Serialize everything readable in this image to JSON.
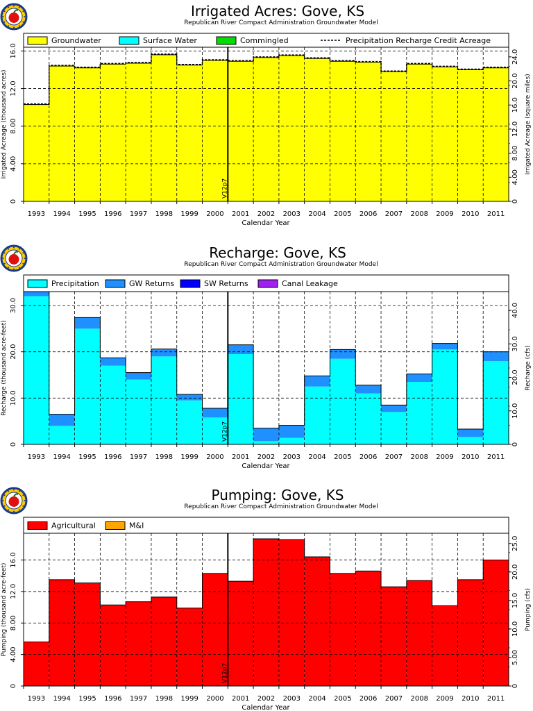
{
  "chart_data": [
    {
      "type": "bar",
      "title": "Irrigated Acres: Gove, KS",
      "subtitle": "Republican River Compact Administration Groundwater Model",
      "xlabel": "Calendar Year",
      "ylabel": "Irrigated Acreage (thousand acres)",
      "ylabel_right": "Irrigated Acreage (square miles)",
      "categories": [
        "1993",
        "1994",
        "1995",
        "1996",
        "1997",
        "1998",
        "1999",
        "2000",
        "2001",
        "2002",
        "2003",
        "2004",
        "2005",
        "2006",
        "2007",
        "2008",
        "2009",
        "2010",
        "2011"
      ],
      "ylim": [
        0,
        16.4
      ],
      "yticks": [
        0,
        4.0,
        8.0,
        12.0,
        16.0
      ],
      "yticks_labels": [
        "0",
        "4.00",
        "8.00",
        "12.0",
        "16.0"
      ],
      "ylim_right": [
        0,
        25.6
      ],
      "yticks_right": [
        0,
        4.0,
        8.0,
        12.0,
        16.0,
        20.0,
        24.0
      ],
      "yticks_right_labels": [
        "0",
        "4.00",
        "8.00",
        "12.0",
        "16.0",
        "20.0",
        "24.0"
      ],
      "colors": [
        "#ffff00",
        "#00ffff",
        "#00dd00"
      ],
      "series": [
        {
          "name": "Groundwater",
          "values": [
            10.3,
            14.4,
            14.2,
            14.6,
            14.7,
            15.6,
            14.5,
            15.0,
            14.9,
            15.3,
            15.5,
            15.2,
            14.9,
            14.8,
            13.8,
            14.6,
            14.3,
            14.0,
            14.2
          ]
        },
        {
          "name": "Surface Water",
          "values": [
            0,
            0,
            0,
            0,
            0,
            0,
            0,
            0,
            0,
            0,
            0,
            0,
            0,
            0,
            0,
            0,
            0,
            0,
            0
          ]
        },
        {
          "name": "Commingled",
          "values": [
            0,
            0,
            0,
            0,
            0,
            0,
            0,
            0,
            0,
            0,
            0,
            0,
            0,
            0,
            0,
            0,
            0,
            0,
            0
          ]
        }
      ],
      "line_series": {
        "name": "Precipitation Recharge Credit Acreage",
        "values": [
          10.3,
          14.4,
          14.2,
          14.6,
          14.7,
          15.6,
          14.5,
          15.0,
          14.9,
          15.3,
          15.5,
          15.2,
          14.9,
          14.8,
          13.8,
          14.6,
          14.3,
          14.0,
          14.2
        ]
      },
      "marker": {
        "label": "V12p7"
      },
      "grid": true,
      "legend": "top"
    },
    {
      "type": "bar",
      "title": "Recharge: Gove, KS",
      "subtitle": "Republican River Compact Administration Groundwater Model",
      "xlabel": "Calendar Year",
      "ylabel": "Recharge (thousand acre-feet)",
      "ylabel_right": "Recharge (cfs)",
      "categories": [
        "1993",
        "1994",
        "1995",
        "1996",
        "1997",
        "1998",
        "1999",
        "2000",
        "2001",
        "2002",
        "2003",
        "2004",
        "2005",
        "2006",
        "2007",
        "2008",
        "2009",
        "2010",
        "2011"
      ],
      "ylim": [
        0,
        33
      ],
      "yticks": [
        0,
        10.0,
        20.0,
        30.0
      ],
      "yticks_labels": [
        "0",
        "10.0",
        "20.0",
        "30.0"
      ],
      "ylim_right": [
        0,
        45.6
      ],
      "yticks_right": [
        0,
        10.0,
        20.0,
        30.0,
        40.0
      ],
      "yticks_right_labels": [
        "0",
        "10.0",
        "20.0",
        "30.0",
        "40.0"
      ],
      "colors": [
        "#00ffff",
        "#1e90ff",
        "#0000ff",
        "#a020f0"
      ],
      "series": [
        {
          "name": "Precipitation",
          "values": [
            32.0,
            4.0,
            25.0,
            17.0,
            14.0,
            19.0,
            9.5,
            5.8,
            19.5,
            0.7,
            1.4,
            12.5,
            18.5,
            11.0,
            7.0,
            13.5,
            20.5,
            1.6,
            18.0
          ]
        },
        {
          "name": "GW Returns",
          "values": [
            1.0,
            2.5,
            2.4,
            1.7,
            1.5,
            1.6,
            1.3,
            2.0,
            2.0,
            2.8,
            2.7,
            2.3,
            2.0,
            1.8,
            1.5,
            1.7,
            1.3,
            1.7,
            2.0
          ]
        },
        {
          "name": "SW Returns",
          "values": [
            0,
            0,
            0,
            0,
            0,
            0,
            0,
            0,
            0,
            0,
            0,
            0,
            0,
            0,
            0,
            0,
            0,
            0,
            0
          ]
        },
        {
          "name": "Canal Leakage",
          "values": [
            0,
            0,
            0,
            0,
            0,
            0,
            0,
            0,
            0,
            0,
            0,
            0,
            0,
            0,
            0,
            0,
            0,
            0,
            0
          ]
        }
      ],
      "marker": {
        "label": "V12p7"
      },
      "grid": true,
      "legend": "top"
    },
    {
      "type": "bar",
      "title": "Pumping: Gove, KS",
      "subtitle": "Republican River Compact Administration Groundwater Model",
      "xlabel": "Calendar Year",
      "ylabel": "Pumping (thousand acre-feet)",
      "ylabel_right": "Pumping (cfs)",
      "categories": [
        "1993",
        "1994",
        "1995",
        "1996",
        "1997",
        "1998",
        "1999",
        "2000",
        "2001",
        "2002",
        "2003",
        "2004",
        "2005",
        "2006",
        "2007",
        "2008",
        "2009",
        "2010",
        "2011"
      ],
      "ylim": [
        0,
        19.4
      ],
      "yticks": [
        0,
        4.0,
        8.0,
        12.0,
        16.0
      ],
      "yticks_labels": [
        "0",
        "4.00",
        "8.00",
        "12.0",
        "16.0"
      ],
      "ylim_right": [
        0,
        26.8
      ],
      "yticks_right": [
        0,
        5.0,
        10.0,
        15.0,
        20.0,
        25.0
      ],
      "yticks_right_labels": [
        "0",
        "5.00",
        "10.0",
        "15.0",
        "20.0",
        "25.0"
      ],
      "colors": [
        "#ff0000",
        "#ffa500"
      ],
      "series": [
        {
          "name": "Agricultural",
          "values": [
            5.6,
            13.5,
            13.1,
            10.3,
            10.7,
            11.3,
            9.9,
            14.3,
            13.3,
            18.7,
            18.6,
            16.4,
            14.3,
            14.6,
            12.6,
            13.4,
            10.2,
            13.5,
            16.0
          ]
        },
        {
          "name": "M&I",
          "values": [
            0,
            0,
            0,
            0,
            0,
            0,
            0,
            0,
            0,
            0,
            0,
            0,
            0,
            0,
            0,
            0,
            0,
            0,
            0
          ]
        }
      ],
      "marker": {
        "label": "V12p7"
      },
      "grid": true,
      "legend": "top"
    }
  ]
}
